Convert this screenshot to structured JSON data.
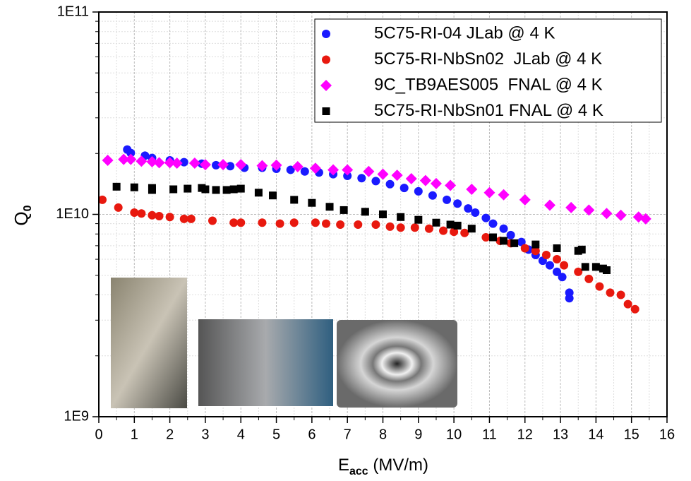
{
  "chart_data": {
    "type": "scatter",
    "xlabel_parts": [
      "E",
      "acc",
      " (MV/m)"
    ],
    "ylabel_parts": [
      "Q",
      "0"
    ],
    "xlim": [
      0,
      16
    ],
    "xticks": [
      0,
      1,
      2,
      3,
      4,
      5,
      6,
      7,
      8,
      9,
      10,
      11,
      12,
      13,
      14,
      15,
      16
    ],
    "ylim": [
      1000000000.0,
      100000000000.0
    ],
    "yticks": [
      {
        "value": 1000000000.0,
        "label": "1E9"
      },
      {
        "value": 10000000000.0,
        "label": "1E10"
      },
      {
        "value": 100000000000.0,
        "label": "1E11"
      }
    ],
    "log_y": true,
    "grid": true,
    "legend": "upper right",
    "series": [
      {
        "name": "5C75-RI-04 JLab @ 4 K",
        "color": "#1a1aff",
        "marker": "circle",
        "x": [
          0.8,
          0.9,
          1.3,
          1.5,
          2.0,
          2.4,
          2.9,
          3.3,
          3.7,
          4.1,
          4.6,
          5.0,
          5.4,
          5.8,
          6.2,
          6.6,
          7.0,
          7.4,
          7.8,
          8.2,
          8.6,
          9.0,
          9.4,
          9.8,
          10.1,
          10.4,
          10.6,
          10.9,
          11.1,
          11.4,
          11.6,
          11.9,
          12.1,
          12.3,
          12.5,
          12.7,
          12.9,
          13.05,
          13.25,
          13.25
        ],
        "values": [
          20900000000.0,
          20100000000.0,
          19500000000.0,
          19000000000.0,
          18500000000.0,
          18100000000.0,
          17800000000.0,
          17500000000.0,
          17300000000.0,
          17000000000.0,
          17000000000.0,
          16800000000.0,
          16600000000.0,
          16300000000.0,
          16100000000.0,
          15800000000.0,
          15500000000.0,
          15100000000.0,
          14600000000.0,
          14100000000.0,
          13500000000.0,
          13000000000.0,
          12400000000.0,
          11800000000.0,
          11300000000.0,
          10700000000.0,
          10200000000.0,
          9600000000.0,
          9000000000.0,
          8500000000.0,
          7900000000.0,
          7300000000.0,
          6700000000.0,
          6300000000.0,
          5900000000.0,
          5600000000.0,
          5200000000.0,
          4900000000.0,
          4100000000.0,
          3850000000.0
        ]
      },
      {
        "name": "5C75-RI-NbSn02  JLab @ 4 K",
        "color": "#e8190f",
        "marker": "circle",
        "x": [
          0.1,
          0.55,
          1.0,
          1.2,
          1.5,
          1.7,
          2.0,
          2.4,
          2.6,
          3.2,
          3.8,
          4.0,
          4.6,
          5.1,
          5.5,
          6.1,
          6.4,
          6.8,
          7.3,
          7.8,
          8.2,
          8.5,
          8.9,
          9.3,
          9.7,
          10.0,
          10.3,
          10.9,
          11.3,
          11.6,
          12.0,
          12.3,
          12.6,
          12.9,
          13.1,
          13.5,
          13.8,
          14.1,
          14.4,
          14.7,
          14.9,
          15.1
        ],
        "values": [
          11800000000.0,
          10800000000.0,
          10200000000.0,
          10100000000.0,
          9900000000.0,
          9800000000.0,
          9700000000.0,
          9500000000.0,
          9500000000.0,
          9300000000.0,
          9100000000.0,
          9100000000.0,
          9100000000.0,
          9000000000.0,
          9100000000.0,
          9100000000.0,
          9000000000.0,
          8900000000.0,
          8900000000.0,
          8900000000.0,
          8700000000.0,
          8600000000.0,
          8600000000.0,
          8500000000.0,
          8300000000.0,
          8200000000.0,
          8100000000.0,
          7700000000.0,
          7400000000.0,
          7200000000.0,
          6800000000.0,
          6600000000.0,
          6300000000.0,
          6000000000.0,
          5600000000.0,
          5200000000.0,
          4800000000.0,
          4400000000.0,
          4100000000.0,
          4000000000.0,
          3600000000.0,
          3400000000.0
        ]
      },
      {
        "name": "9C_TB9AES005  FNAL @ 4 K",
        "color": "#ff00ff",
        "marker": "diamond",
        "x": [
          0.25,
          0.7,
          0.9,
          1.2,
          1.5,
          1.7,
          2.0,
          2.2,
          2.7,
          3.0,
          3.5,
          4.0,
          4.6,
          5.0,
          5.6,
          6.1,
          6.6,
          7.0,
          7.6,
          8.0,
          8.4,
          8.8,
          9.2,
          9.5,
          9.9,
          10.5,
          11.0,
          11.4,
          12.0,
          12.7,
          13.3,
          13.8,
          14.3,
          14.7,
          15.2,
          15.4
        ],
        "values": [
          18500000000.0,
          18700000000.0,
          18700000000.0,
          18300000000.0,
          18200000000.0,
          18000000000.0,
          18000000000.0,
          17900000000.0,
          17900000000.0,
          17600000000.0,
          17600000000.0,
          17600000000.0,
          17400000000.0,
          17500000000.0,
          17200000000.0,
          16900000000.0,
          16600000000.0,
          16600000000.0,
          16300000000.0,
          15800000000.0,
          15600000000.0,
          15000000000.0,
          14700000000.0,
          14200000000.0,
          13900000000.0,
          13300000000.0,
          12800000000.0,
          12500000000.0,
          11800000000.0,
          11100000000.0,
          10800000000.0,
          10500000000.0,
          10100000000.0,
          9900000000.0,
          9700000000.0,
          9500000000.0
        ]
      },
      {
        "name": "5C75-RI-NbSn01 FNAL @ 4 K",
        "color": "#000000",
        "marker": "square",
        "x": [
          0.5,
          1.0,
          1.5,
          1.5,
          2.1,
          2.5,
          2.9,
          3.0,
          3.3,
          3.6,
          3.8,
          4.0,
          4.5,
          4.9,
          5.5,
          6.0,
          6.5,
          6.9,
          7.5,
          8.0,
          8.5,
          9.0,
          9.5,
          9.9,
          10.1,
          10.5,
          11.1,
          11.4,
          11.7,
          12.3,
          12.9,
          13.5,
          13.6,
          13.7,
          14.0,
          14.2,
          14.3
        ],
        "values": [
          13700000000.0,
          13600000000.0,
          13500000000.0,
          13200000000.0,
          13300000000.0,
          13400000000.0,
          13500000000.0,
          13300000000.0,
          13200000000.0,
          13200000000.0,
          13300000000.0,
          13400000000.0,
          12800000000.0,
          12400000000.0,
          11800000000.0,
          11400000000.0,
          10900000000.0,
          10500000000.0,
          10300000000.0,
          10000000000.0,
          9700000000.0,
          9400000000.0,
          9100000000.0,
          8900000000.0,
          8800000000.0,
          8500000000.0,
          7700000000.0,
          7400000000.0,
          7200000000.0,
          7100000000.0,
          6800000000.0,
          6600000000.0,
          6700000000.0,
          5500000000.0,
          5500000000.0,
          5400000000.0,
          5300000000.0
        ]
      }
    ]
  }
}
